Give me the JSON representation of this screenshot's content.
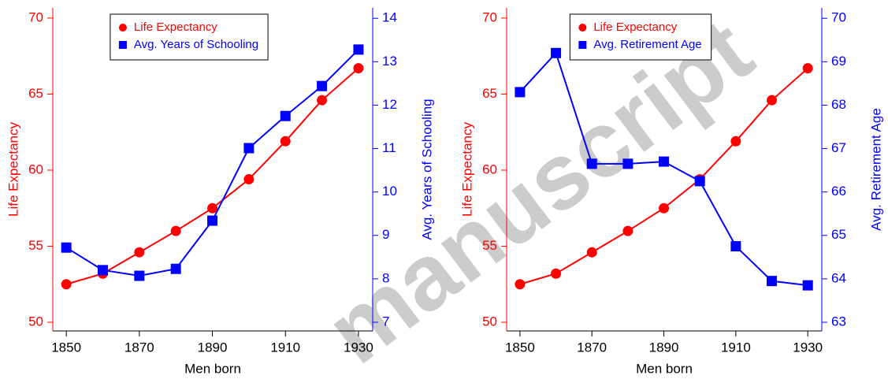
{
  "watermark": "manuscript",
  "chart_data": [
    {
      "type": "line",
      "xlabel": "Men born",
      "ylabel": "Life Expectancy",
      "y2label": "Avg. Years of Schooling",
      "x": [
        1850,
        1860,
        1870,
        1880,
        1890,
        1900,
        1910,
        1920,
        1930
      ],
      "xlim": [
        1846.3,
        1933.9
      ],
      "xticks": [
        1850,
        1870,
        1890,
        1910,
        1930
      ],
      "ylim": [
        49.43,
        70.67
      ],
      "yticks": [
        50,
        55,
        60,
        65,
        70
      ],
      "y2lim": [
        6.8,
        14.24
      ],
      "y2ticks": [
        7,
        8,
        9,
        10,
        11,
        12,
        13,
        14
      ],
      "legend": "top",
      "series": [
        {
          "name": "Life Expectancy",
          "color": "#ff0000",
          "marker": "circle",
          "values": [
            52.5,
            53.2,
            54.6,
            56.0,
            57.5,
            59.4,
            61.9,
            64.6,
            66.7
          ]
        },
        {
          "name": "Avg. Years of Schooling",
          "color": "#0000ff",
          "marker": "square",
          "axis": "y2",
          "values": [
            8.72,
            8.2,
            8.07,
            8.23,
            9.34,
            11.01,
            11.75,
            12.44,
            13.28
          ]
        }
      ]
    },
    {
      "type": "line",
      "xlabel": "Men born",
      "ylabel": "Life Expectancy",
      "y2label": "Avg. Retirement Age",
      "x": [
        1850,
        1860,
        1870,
        1880,
        1890,
        1900,
        1910,
        1920,
        1930
      ],
      "xlim": [
        1846.3,
        1933.9
      ],
      "xticks": [
        1850,
        1870,
        1890,
        1910,
        1930
      ],
      "ylim": [
        49.43,
        70.67
      ],
      "yticks": [
        50,
        55,
        60,
        65,
        70
      ],
      "y2lim": [
        62.8,
        70.24
      ],
      "y2ticks": [
        63,
        64,
        65,
        66,
        67,
        68,
        69,
        70
      ],
      "legend": "top",
      "series": [
        {
          "name": "Life Expectancy",
          "color": "#ff0000",
          "marker": "circle",
          "values": [
            52.5,
            53.2,
            54.6,
            56.0,
            57.5,
            59.4,
            61.9,
            64.6,
            66.7
          ]
        },
        {
          "name": "Avg. Retirement Age",
          "color": "#0000ff",
          "marker": "square",
          "axis": "y2",
          "values": [
            68.3,
            69.2,
            66.65,
            66.65,
            66.7,
            66.25,
            64.75,
            63.95,
            63.85
          ]
        }
      ]
    }
  ]
}
